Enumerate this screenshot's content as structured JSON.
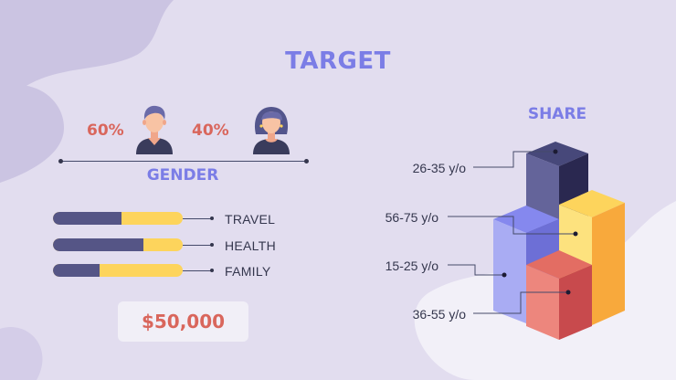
{
  "title": "TARGET",
  "gender": {
    "male_pct": "60%",
    "female_pct": "40%",
    "label": "GENDER",
    "male_icon": "man-avatar-icon",
    "female_icon": "woman-avatar-icon"
  },
  "interests": [
    {
      "label": "TRAVEL",
      "value": 0.53
    },
    {
      "label": "HEALTH",
      "value": 0.7
    },
    {
      "label": "FAMILY",
      "value": 0.36
    }
  ],
  "budget": "$50,000",
  "share": {
    "title": "SHARE",
    "ages": [
      "26-35 y/o",
      "56-75 y/o",
      "15-25 y/o",
      "36-55 y/o"
    ]
  },
  "colors": {
    "accent": "#7b7de6",
    "red": "#d9665c",
    "dark": "#555586",
    "yellow": "#fdd45c",
    "text": "#34364d",
    "background": "#e2ddef"
  }
}
